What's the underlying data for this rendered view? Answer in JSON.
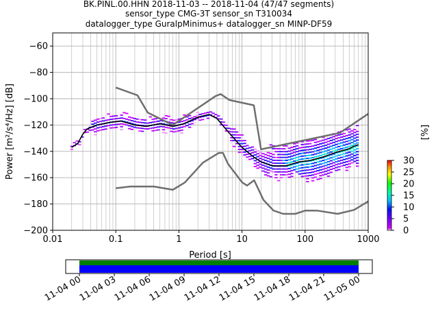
{
  "title_lines": [
    "BK.PINL.00.HHN   2018-11-03 -- 2018-11-04  (47/47 segments)",
    "sensor_type CMG-3T sensor_sn T310034",
    "datalogger_type GuralpMinimus+ datalogger_sn MINP-DF59"
  ],
  "colors": {
    "noise_model": "#6e6e6e",
    "mode_curve": "#000000",
    "grid": "#b0b0b0"
  },
  "chart_data": [
    {
      "type": "heatmap",
      "xlabel": "Period [s]",
      "ylabel": "Power [m²/s⁴/Hz] [dB]",
      "xscale": "log",
      "xlim": [
        0.01,
        1000
      ],
      "ylim": [
        -200,
        -50
      ],
      "x_tick_labels": [
        "0.01",
        "0.1",
        "1",
        "10",
        "100",
        "1000"
      ],
      "y_tick_labels": [
        "−200",
        "−180",
        "−160",
        "−140",
        "−120",
        "−100",
        "−80",
        "−60"
      ],
      "grid": true,
      "noise_model_high": {
        "x": [
          0.1,
          0.22,
          0.32,
          0.8,
          3.8,
          4.6,
          6.3,
          15.4,
          20,
          354.8,
          1000
        ],
        "y": [
          -91.5,
          -97.4,
          -110.5,
          -120,
          -98,
          -96.5,
          -101,
          -105,
          -138.5,
          -126,
          -111.5
        ]
      },
      "noise_model_low": {
        "x": [
          0.1,
          0.17,
          0.4,
          0.8,
          1.24,
          2.4,
          4.3,
          5,
          6,
          10,
          12,
          15.6,
          21.9,
          31.6,
          45,
          70,
          101,
          154,
          328,
          600,
          1000
        ],
        "y": [
          -168,
          -166.7,
          -166.7,
          -169.2,
          -163.7,
          -148.6,
          -141.2,
          -141.2,
          -149.5,
          -163.5,
          -166,
          -162,
          -177,
          -185,
          -187.5,
          -187.5,
          -185,
          -185,
          -187.5,
          -184.5,
          -178
        ]
      },
      "mode_curve": {
        "x": [
          0.02,
          0.025,
          0.03,
          0.035,
          0.05,
          0.08,
          0.12,
          0.2,
          0.3,
          0.5,
          0.8,
          1.2,
          2,
          3,
          4,
          6,
          10,
          15,
          20,
          30,
          50,
          80,
          120,
          200,
          300,
          500,
          600,
          700
        ],
        "y": [
          -137,
          -134,
          -127,
          -123,
          -120,
          -118,
          -117,
          -120,
          -121,
          -119,
          -121,
          -119,
          -114,
          -112,
          -115,
          -125,
          -137,
          -144,
          -148,
          -151,
          -151,
          -148,
          -147,
          -144,
          -141,
          -138,
          -136,
          -135
        ]
      },
      "colorbar": {
        "label": "[%]",
        "ticks": [
          "0",
          "5",
          "10",
          "15",
          "20",
          "25",
          "30"
        ],
        "range": [
          0,
          30
        ]
      }
    },
    {
      "type": "timeline",
      "x_tick_labels": [
        "11-04 00",
        "11-04 03",
        "11-04 06",
        "11-04 09",
        "11-04 12",
        "11-04 15",
        "11-04 18",
        "11-04 21",
        "11-05 00"
      ],
      "coverage_colors": [
        "#008000",
        "#0000ff"
      ]
    }
  ]
}
